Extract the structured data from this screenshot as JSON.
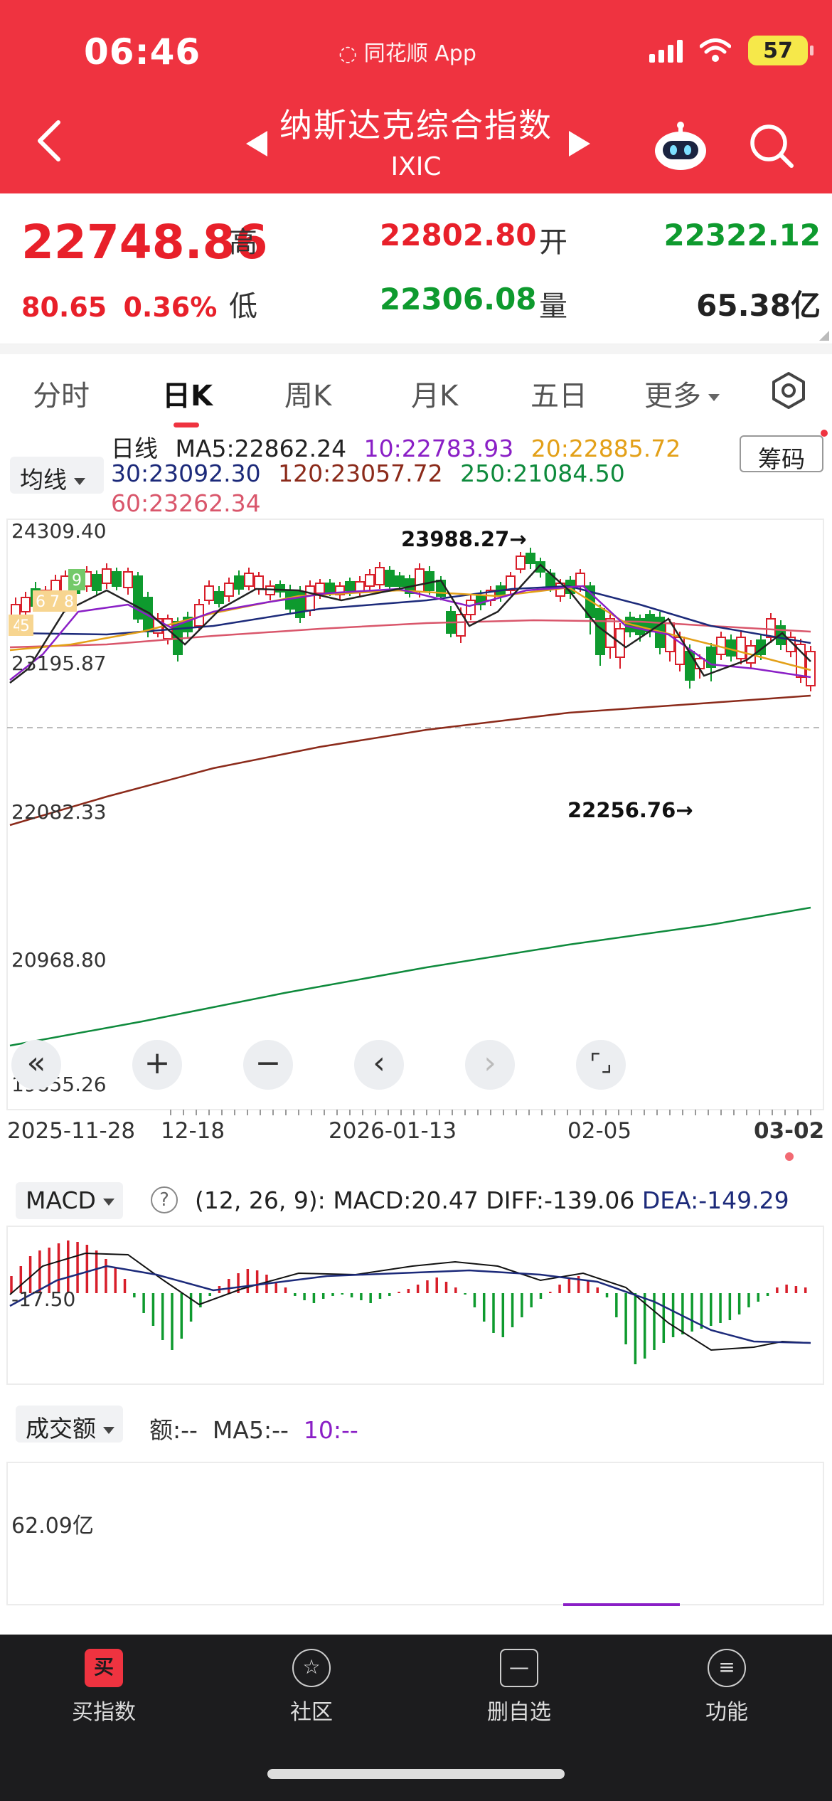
{
  "status_bar": {
    "time": "06:46",
    "app": "同花顺 App",
    "battery": "57"
  },
  "header": {
    "title": "纳斯达克综合指数",
    "subtitle": "IXIC"
  },
  "quote": {
    "last": "22748.86",
    "change": "80.65",
    "change_pct": "0.36%",
    "high_label": "高",
    "high": "22802.80",
    "low_label": "低",
    "low": "22306.08",
    "open_label": "开",
    "open": "22322.12",
    "volume_label": "量",
    "volume": "65.38亿"
  },
  "tabs": [
    "分时",
    "日K",
    "周K",
    "月K",
    "五日",
    "更多"
  ],
  "active_tab": "日K",
  "ma_legend": {
    "selector": "均线",
    "period": "日线",
    "chip_button": "筹码",
    "ma5": "MA5:22862.24",
    "ma10": "10:22783.93",
    "ma20": "20:22885.72",
    "ma30": "30:23092.30",
    "ma120": "120:23057.72",
    "ma250": "250:21084.50",
    "ma60": "60:23262.34"
  },
  "colors": {
    "ma5": "#222222",
    "ma10": "#8a1fc6",
    "ma20": "#e3a018",
    "ma30": "#1c2a7a",
    "ma60": "#d9566b",
    "ma120": "#8b2a1a",
    "ma250": "#0e8a3c",
    "up": "#d81e2a",
    "down": "#0e9a2e"
  },
  "chart": {
    "y_labels": [
      "24309.40",
      "23195.87",
      "22082.33",
      "20968.80",
      "19855.26"
    ],
    "high_marker": "23988.27→",
    "low_marker": "22256.76→",
    "badges": [
      "4",
      "5",
      "6",
      "7",
      "8",
      "9"
    ],
    "dates": [
      "2025-11-28",
      "12-18",
      "2026-01-13",
      "02-05",
      "03-02"
    ]
  },
  "macd": {
    "selector": "MACD",
    "help": "?",
    "params": "(12, 26, 9):",
    "macd": "MACD:20.47",
    "diff": "DIFF:-139.06",
    "dea": "DEA:-149.29",
    "axis_label": "-17.50"
  },
  "volume": {
    "selector": "成交额",
    "amount": "额:--",
    "ma5": "MA5:--",
    "ma10": "10:--",
    "axis_label": "62.09亿"
  },
  "bottom_nav": [
    {
      "icon": "买",
      "label": "买指数"
    },
    {
      "icon": "☆",
      "label": "社区"
    },
    {
      "icon": "—",
      "label": "删自选"
    },
    {
      "icon": "≡",
      "label": "功能"
    }
  ],
  "chart_data": {
    "type": "candlestick",
    "y_axis_ticks": [
      24309.4,
      23195.87,
      22082.33,
      20968.8,
      19855.26
    ],
    "high": 23988.27,
    "low": 22256.76,
    "last_close": 22748.86,
    "ma_last": {
      "MA5": 22862.24,
      "MA10": 22783.93,
      "MA20": 22885.72,
      "MA30": 23092.3,
      "MA60": 23262.34,
      "MA120": 23057.72,
      "MA250": 21084.5
    },
    "macd_last": {
      "MACD": 20.47,
      "DIFF": -139.06,
      "DEA": -149.29
    }
  }
}
